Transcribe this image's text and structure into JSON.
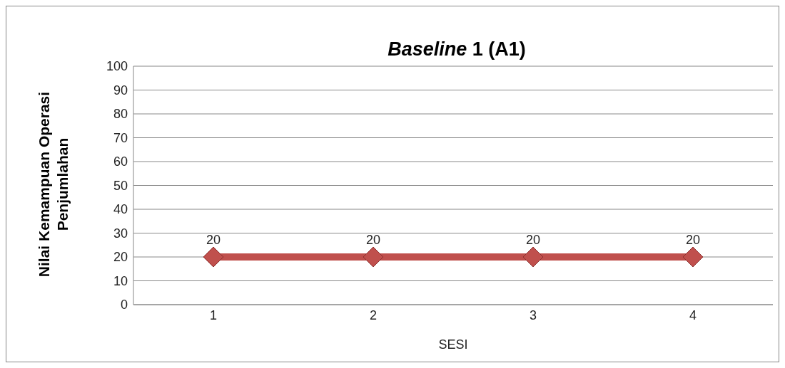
{
  "chart_data": {
    "type": "line",
    "title": "Baseline 1 (A1)",
    "xlabel": "SESI",
    "ylabel": "Nilai Kemampuan Operasi Penjumlahan",
    "categories": [
      "1",
      "2",
      "3",
      "4"
    ],
    "series": [
      {
        "color": "#c0504d",
        "values": [
          20,
          20,
          20,
          20
        ]
      }
    ],
    "ylim": [
      0,
      100
    ],
    "yticks": [
      0,
      10,
      20,
      30,
      40,
      50,
      60,
      70,
      80,
      90,
      100
    ],
    "grid": "y",
    "legend": false,
    "marker": "diamond",
    "line_style": "solid",
    "data_labels": true
  }
}
